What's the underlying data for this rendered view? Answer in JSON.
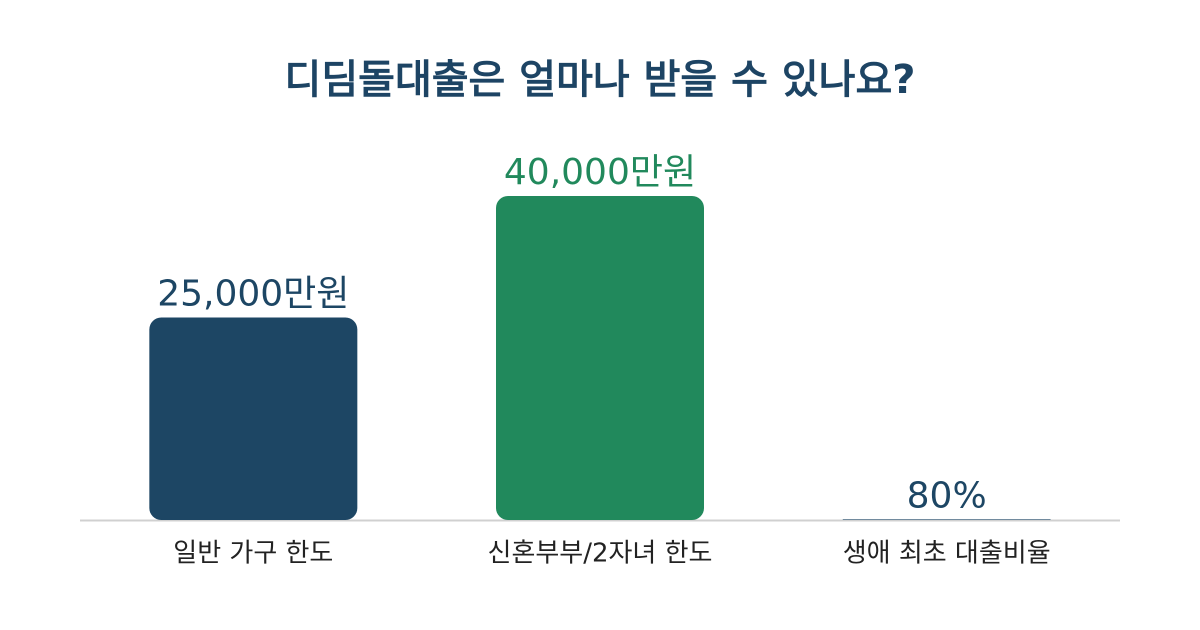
{
  "chart_data": {
    "type": "bar",
    "title": "디딤돌대출은 얼마나 받을 수 있나요?",
    "categories": [
      "일반 가구 한도",
      "신혼부부/2자녀 한도",
      "생애 최초 대출비율"
    ],
    "values": [
      25000,
      40000,
      80
    ],
    "value_labels": [
      "25,000만원",
      "40,000만원",
      "80%"
    ],
    "colors": [
      "#1d4664",
      "#21895c",
      "#1d4664"
    ]
  }
}
